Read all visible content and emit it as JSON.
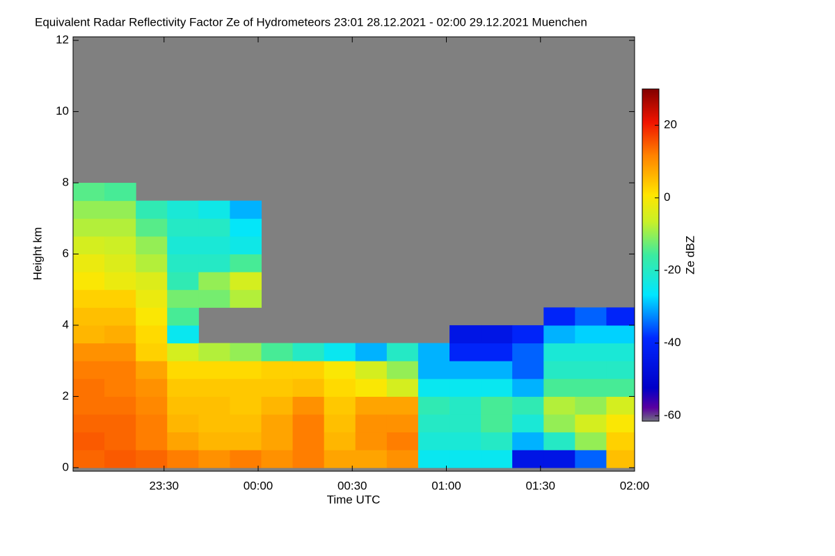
{
  "chart_data": {
    "type": "heatmap",
    "title": "Equivalent Radar Reflectivity Factor Ze of Hydrometeors   23:01 28.12.2021 - 02:00 29.12.2021 Muenchen",
    "xlabel": "Time UTC",
    "ylabel": "Height km",
    "zlabel": "Ze dBZ",
    "xlim": [
      "23:01",
      "02:00"
    ],
    "xticks": [
      "23:30",
      "00:00",
      "00:30",
      "01:00",
      "01:30",
      "02:00"
    ],
    "ylim": [
      -0.1,
      12.1
    ],
    "yticks": [
      0,
      2,
      4,
      6,
      8,
      10,
      12
    ],
    "zlim": [
      -61.5,
      30
    ],
    "zticks": [
      -60,
      -40,
      -20,
      0,
      20
    ],
    "x": [
      "23:06",
      "23:16",
      "23:26",
      "23:36",
      "23:46",
      "23:56",
      "00:06",
      "00:16",
      "00:26",
      "00:36",
      "00:46",
      "00:56",
      "01:06",
      "01:16",
      "01:26",
      "01:36",
      "01:46",
      "01:56"
    ],
    "y": [
      0.25,
      0.75,
      1.25,
      1.75,
      2.25,
      2.75,
      3.25,
      3.75,
      4.25,
      4.75,
      5.25,
      5.75,
      6.25,
      6.75,
      7.25,
      7.75
    ],
    "z": [
      [
        14,
        15,
        14,
        13,
        13,
        12,
        10,
        6,
        5,
        3,
        0,
        -2,
        -5,
        -8,
        -10,
        -14
      ],
      [
        15,
        14,
        14,
        13,
        12,
        12,
        10,
        7,
        5,
        3,
        -2,
        -4,
        -6,
        -8,
        -10,
        -15
      ],
      [
        14,
        12,
        12,
        11,
        10,
        8,
        3,
        2,
        0,
        -2,
        -4,
        -8,
        -10,
        -14,
        -18,
        null
      ],
      [
        12,
        8,
        6,
        5,
        4,
        2,
        -5,
        -25,
        -15,
        -12,
        -18,
        -20,
        -22,
        -20,
        -22,
        null
      ],
      [
        10,
        6,
        5,
        5,
        4,
        2,
        -8,
        null,
        null,
        -12,
        -10,
        -20,
        -22,
        -20,
        -24,
        null
      ],
      [
        12,
        6,
        5,
        4,
        4,
        2,
        -10,
        null,
        null,
        -8,
        -5,
        -15,
        -24,
        -26,
        -30,
        null
      ],
      [
        10,
        8,
        8,
        6,
        4,
        3,
        -15,
        null,
        null,
        null,
        null,
        null,
        null,
        null,
        null,
        null
      ],
      [
        12,
        12,
        12,
        10,
        5,
        3,
        -20,
        null,
        null,
        null,
        null,
        null,
        null,
        null,
        null,
        null
      ],
      [
        8,
        6,
        5,
        4,
        2,
        0,
        -25,
        null,
        null,
        null,
        null,
        null,
        null,
        null,
        null,
        null
      ],
      [
        8,
        10,
        10,
        8,
        0,
        -5,
        -30,
        null,
        null,
        null,
        null,
        null,
        null,
        null,
        null,
        null
      ],
      [
        10,
        12,
        10,
        8,
        -5,
        -10,
        -20,
        null,
        null,
        null,
        null,
        null,
        null,
        null,
        null,
        null
      ],
      [
        -25,
        -22,
        -20,
        -18,
        -25,
        -30,
        -30,
        null,
        null,
        null,
        null,
        null,
        null,
        null,
        null,
        null
      ],
      [
        -25,
        -22,
        -20,
        -20,
        -25,
        -30,
        -40,
        -45,
        null,
        null,
        null,
        null,
        null,
        null,
        null,
        null
      ],
      [
        -25,
        -20,
        -15,
        -15,
        -25,
        -30,
        -40,
        -45,
        null,
        null,
        null,
        null,
        null,
        null,
        null,
        null
      ],
      [
        -45,
        -30,
        -22,
        -18,
        -30,
        -35,
        -35,
        -40,
        null,
        null,
        null,
        null,
        null,
        null,
        null,
        null
      ],
      [
        -45,
        -20,
        -10,
        -8,
        -15,
        -20,
        -22,
        -30,
        -40,
        null,
        null,
        null,
        null,
        null,
        null,
        null
      ],
      [
        -35,
        -10,
        -5,
        -10,
        -15,
        -20,
        -22,
        -28,
        -35,
        null,
        null,
        null,
        null,
        null,
        null,
        null
      ],
      [
        5,
        3,
        0,
        -5,
        -15,
        -20,
        -22,
        -28,
        -40,
        null,
        null,
        null,
        null,
        null,
        null,
        null
      ]
    ]
  }
}
